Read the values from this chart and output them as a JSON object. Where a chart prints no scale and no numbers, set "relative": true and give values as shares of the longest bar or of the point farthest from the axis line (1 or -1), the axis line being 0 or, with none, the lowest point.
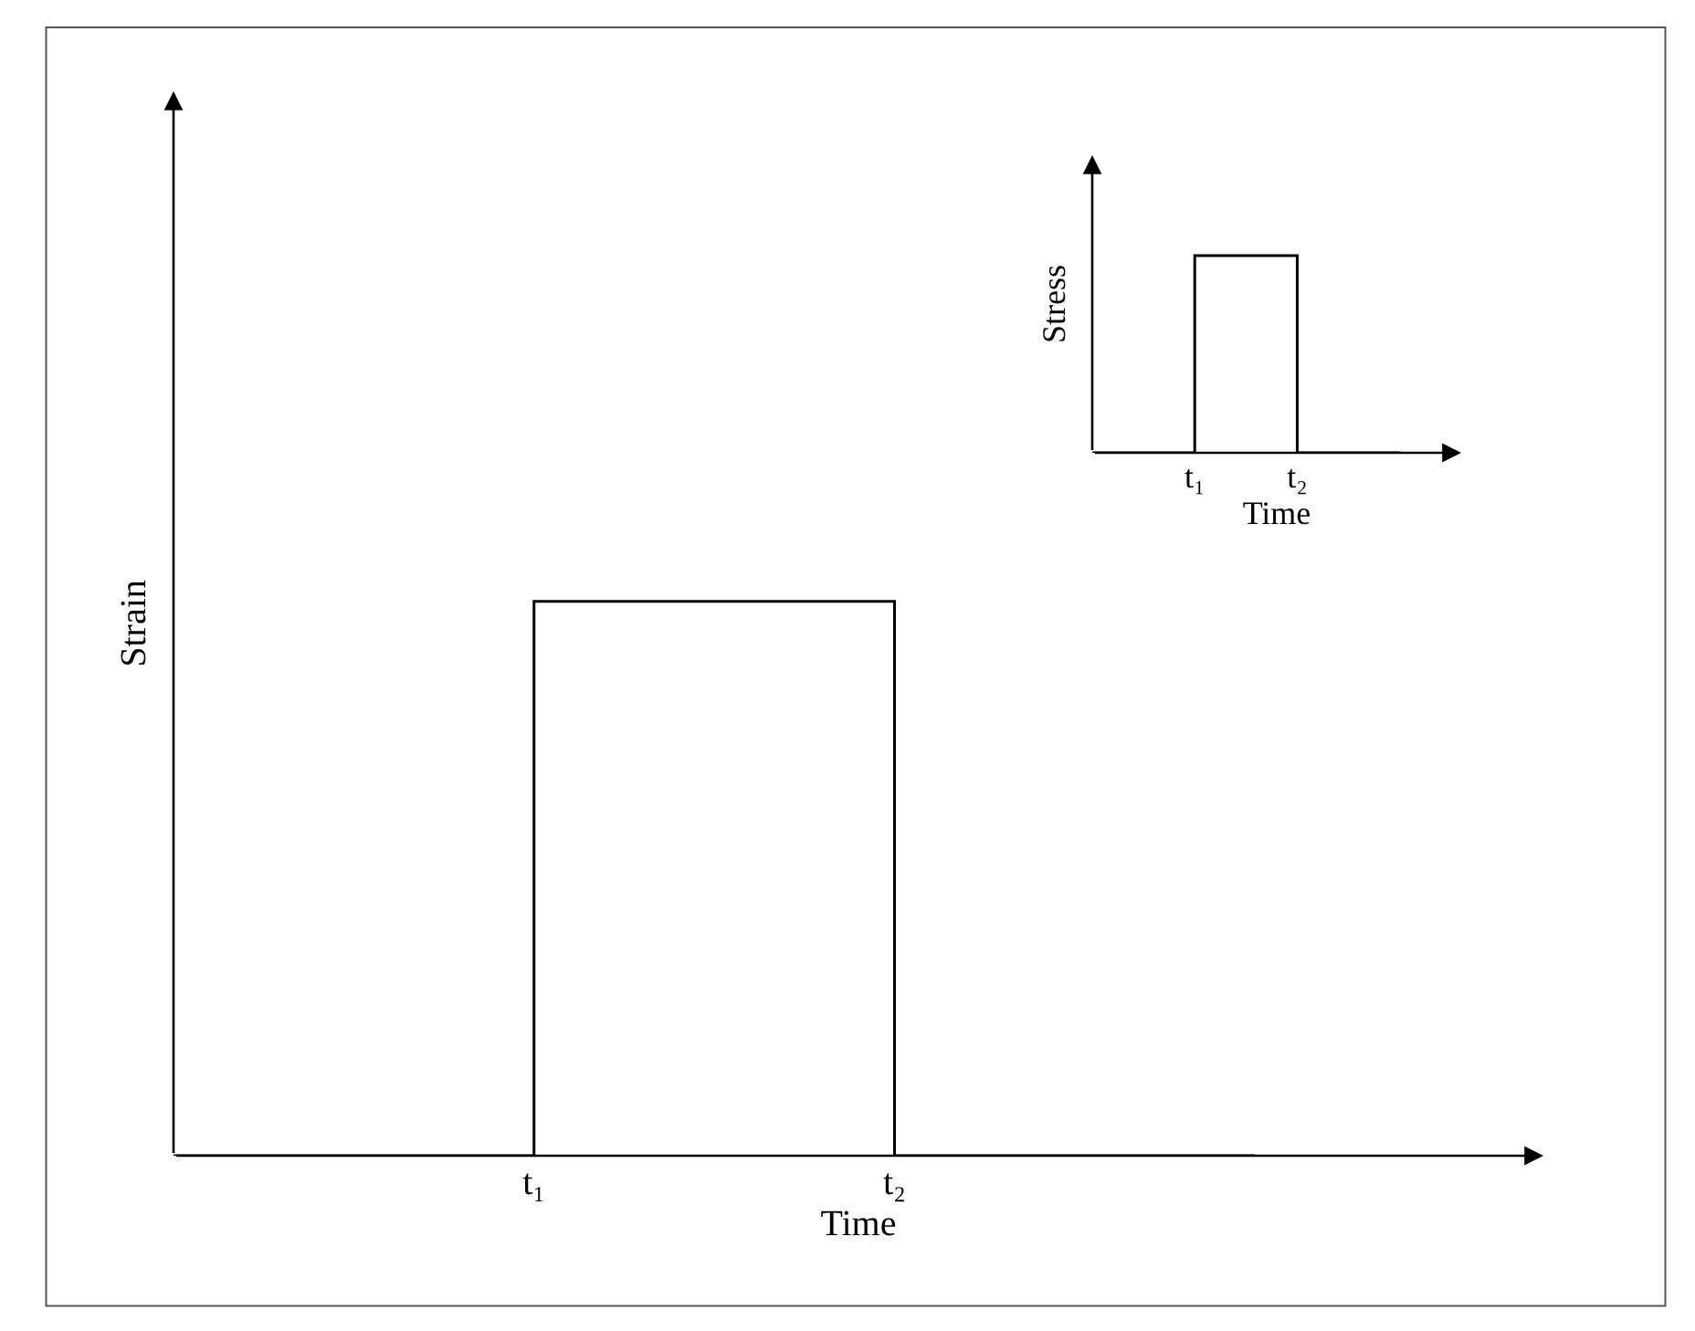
{
  "chart_data": [
    {
      "type": "step",
      "xlabel": "Time",
      "ylabel": "Strain",
      "relative": true,
      "categories": [
        null,
        "t₁",
        "t₂",
        null
      ],
      "series": [
        {
          "color": "#000000",
          "values": [
            0,
            1,
            0,
            0
          ]
        }
      ]
    },
    {
      "type": "step",
      "xlabel": "Time",
      "ylabel": "Stress",
      "relative": true,
      "categories": [
        null,
        "t₁",
        "t₂",
        null
      ],
      "series": [
        {
          "color": "#000000",
          "values": [
            0,
            1,
            0,
            0
          ]
        }
      ]
    }
  ]
}
